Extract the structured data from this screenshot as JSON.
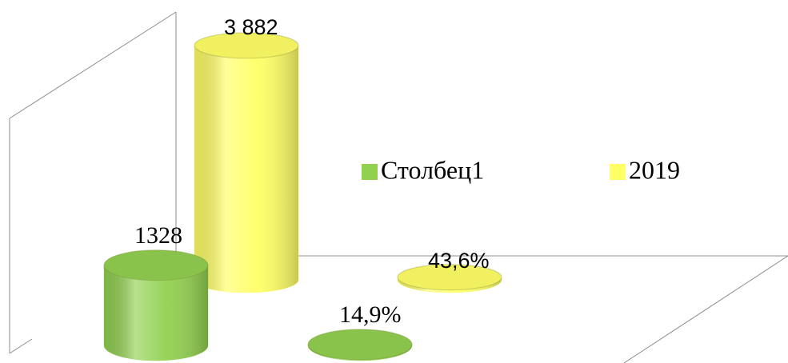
{
  "chart_data": {
    "type": "bar3d",
    "categories": [
      null,
      null
    ],
    "ylim": [
      0,
      4000
    ],
    "legend": "center",
    "series": [
      {
        "name": "Столбец1",
        "color": "#92d050",
        "values": [
          1328,
          14.9
        ],
        "value_labels": [
          "1328",
          "14,9%"
        ]
      },
      {
        "name": "2019",
        "color": "#ffff66",
        "values": [
          3882,
          43.6
        ],
        "value_labels": [
          "3 882",
          "43,6%"
        ]
      }
    ]
  }
}
